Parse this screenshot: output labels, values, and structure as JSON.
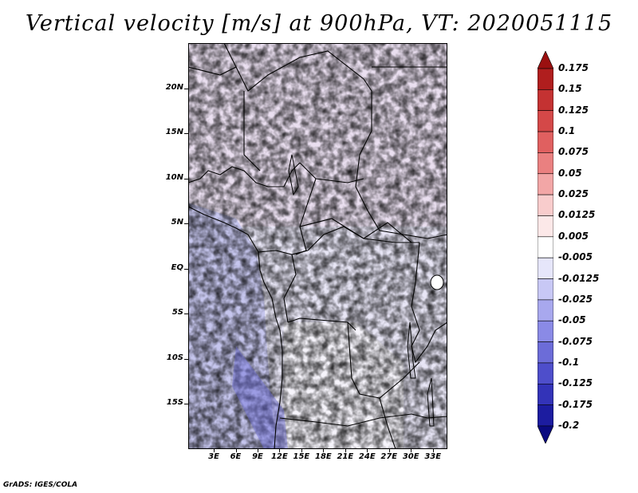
{
  "title": "Vertical velocity [m/s] at 900hPa, VT: 2020051115",
  "footer": "GrADS: IGES/COLA",
  "map": {
    "lon_range": [
      -0.5,
      35
    ],
    "lat_range": [
      -20,
      25
    ],
    "lon_ticks": [
      "3E",
      "6E",
      "9E",
      "12E",
      "15E",
      "18E",
      "21E",
      "24E",
      "27E",
      "30E",
      "33E"
    ],
    "lon_values": [
      3,
      6,
      9,
      12,
      15,
      18,
      21,
      24,
      27,
      30,
      33
    ],
    "lat_ticks": [
      "20N",
      "15N",
      "10N",
      "5N",
      "EQ",
      "5S",
      "10S",
      "15S"
    ],
    "lat_values": [
      20,
      15,
      10,
      5,
      0,
      -5,
      -10,
      -15
    ]
  },
  "colorbar": {
    "labels": [
      "0.175",
      "0.15",
      "0.125",
      "0.1",
      "0.075",
      "0.05",
      "0.025",
      "0.0125",
      "0.005",
      "-0.005",
      "-0.0125",
      "-0.025",
      "-0.05",
      "-0.075",
      "-0.1",
      "-0.125",
      "-0.175",
      "-0.2"
    ],
    "colors": [
      "#9b1010",
      "#b01e1e",
      "#c43232",
      "#d44848",
      "#e06060",
      "#ea8080",
      "#f2a6a6",
      "#f8cccc",
      "#fce8e8",
      "#ffffff",
      "#e6e6fa",
      "#c8c8f5",
      "#a8a8ee",
      "#8a8ae6",
      "#6c6cd8",
      "#4e4ecb",
      "#3333b8",
      "#1c1ca0",
      "#0a0a80"
    ]
  }
}
